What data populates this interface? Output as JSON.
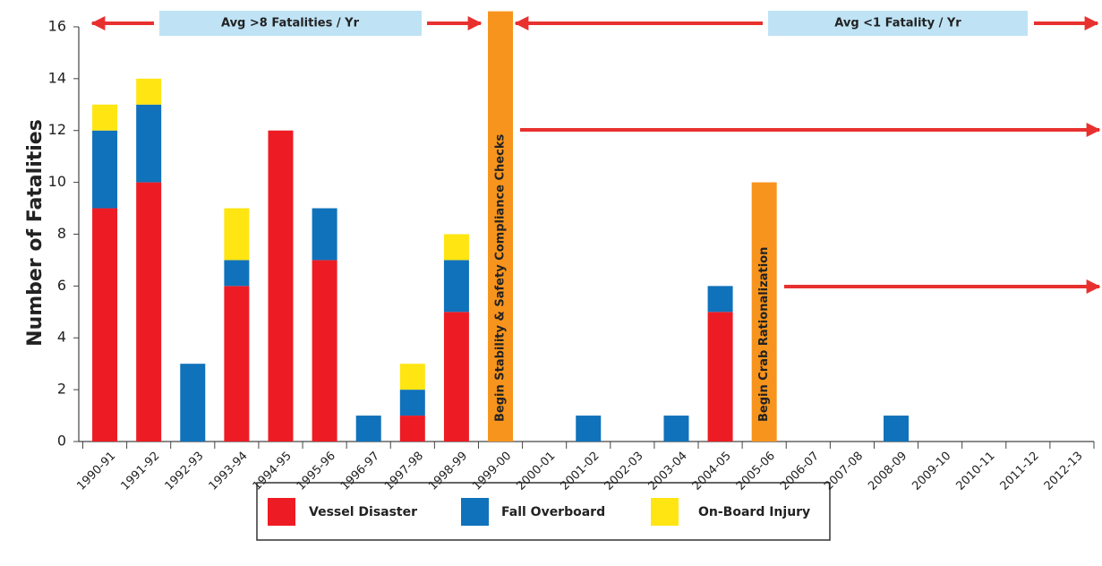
{
  "chart_data": {
    "type": "stacked_bar",
    "y_label": "Number of Fatalities",
    "categories": [
      "1990-91",
      "1991-92",
      "1992-93",
      "1993-94",
      "1994-95",
      "1995-96",
      "1996-97",
      "1997-98",
      "1998-99",
      "1999-00",
      "2000-01",
      "2001-02",
      "2002-03",
      "2003-04",
      "2004-05",
      "2005-06",
      "2006-07",
      "2007-08",
      "2008-09",
      "2009-10",
      "2010-11",
      "2011-12",
      "2012-13"
    ],
    "series": [
      {
        "name": "Vessel Disaster",
        "color": "#ed1c24",
        "values": [
          9,
          10,
          0,
          6,
          12,
          7,
          0,
          1,
          5,
          0,
          0,
          0,
          0,
          0,
          5,
          0,
          0,
          0,
          0,
          0,
          0,
          0,
          0
        ]
      },
      {
        "name": "Fall Overboard",
        "color": "#1072ba",
        "values": [
          3,
          3,
          3,
          1,
          0,
          2,
          1,
          1,
          2,
          0,
          0,
          1,
          0,
          1,
          1,
          0,
          0,
          0,
          1,
          0,
          0,
          0,
          0
        ]
      },
      {
        "name": "On-Board Injury",
        "color": "#ffe512",
        "values": [
          1,
          1,
          0,
          2,
          0,
          0,
          0,
          1,
          1,
          0,
          0,
          0,
          0,
          0,
          0,
          0,
          0,
          0,
          0,
          0,
          0,
          0,
          0
        ]
      }
    ],
    "ylim": [
      0,
      16.6
    ],
    "yticks": [
      0,
      2,
      4,
      6,
      8,
      10,
      12,
      14,
      16
    ],
    "annotations": [
      {
        "text": "Begin Stability & Safety Compliance Checks",
        "category": "1999-00",
        "value": 16.6,
        "color": "#f7941d"
      },
      {
        "text": "Begin Crab Rationalization",
        "category": "2005-06",
        "value": 10,
        "color": "#f7941d"
      }
    ],
    "banners": [
      "Avg >8 Fatalities / Yr",
      "Avg <1 Fatality / Yr"
    ]
  }
}
